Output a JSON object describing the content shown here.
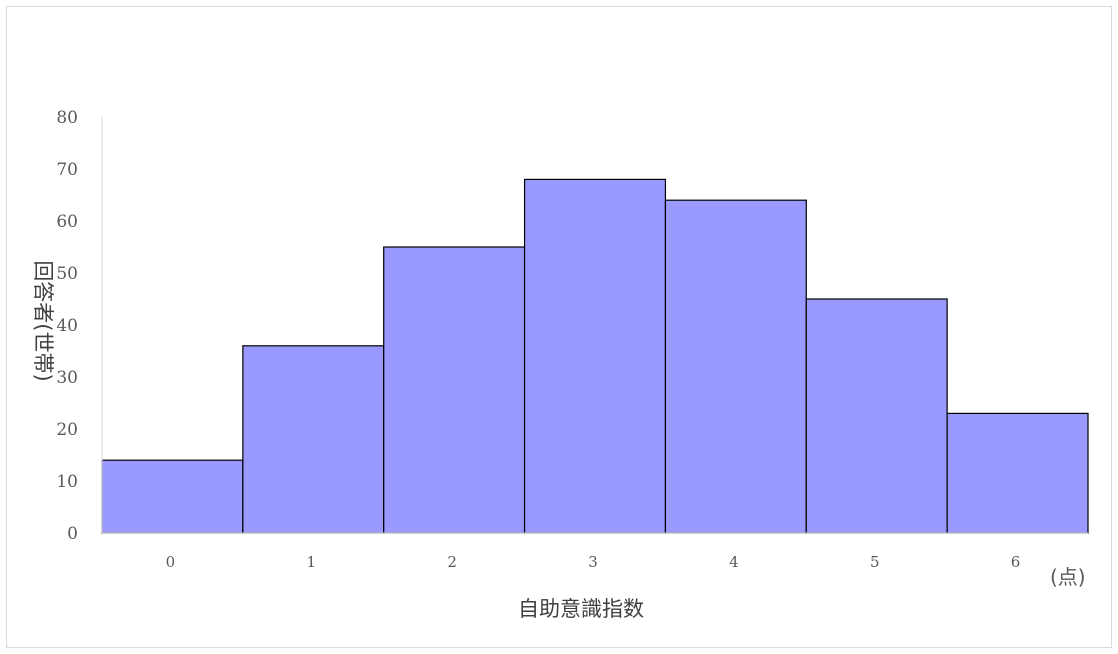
{
  "chart_data": {
    "type": "bar",
    "categories": [
      "0",
      "1",
      "2",
      "3",
      "4",
      "5",
      "6"
    ],
    "values": [
      14,
      36,
      55,
      68,
      64,
      45,
      23
    ],
    "xlabel": "自助意識指数",
    "ylabel": "回答者(世帯)",
    "x_unit": "(点)",
    "ylim": [
      0,
      80
    ],
    "yticks": [
      "0",
      "10",
      "20",
      "30",
      "40",
      "50",
      "60",
      "70",
      "80"
    ],
    "grid": false,
    "legend": "none",
    "bar_color": "#9999ff",
    "bar_edge_color": "#000000"
  }
}
